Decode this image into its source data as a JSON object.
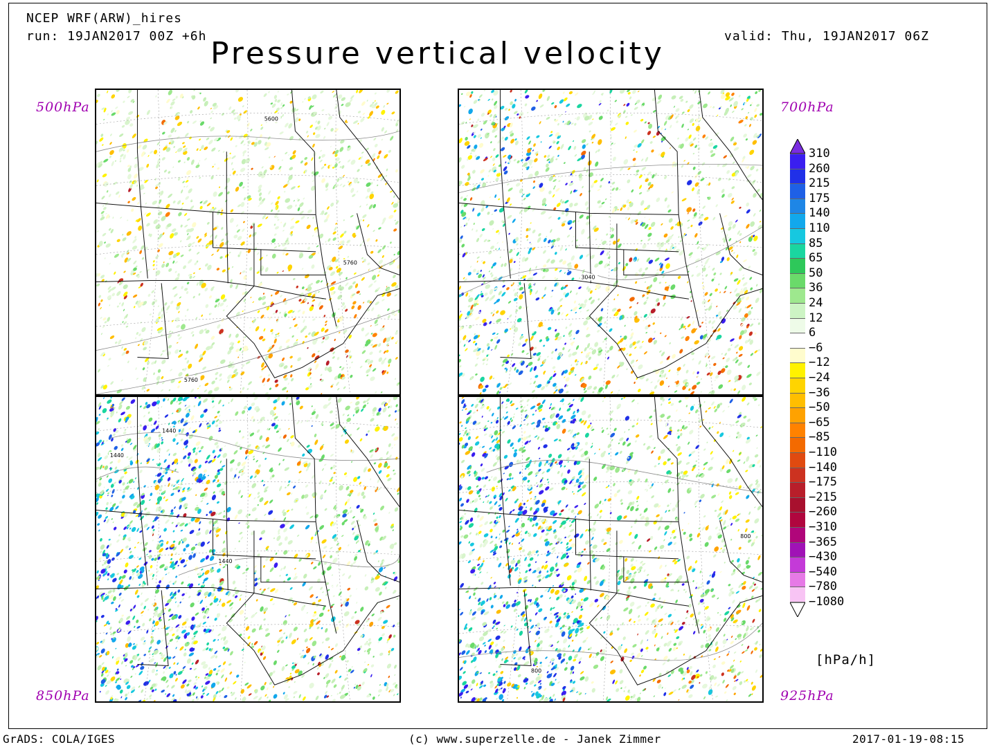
{
  "header": {
    "model": "NCEP WRF(ARW)_hires",
    "run": "run: 19JAN2017 00Z +6h",
    "valid": "valid: Thu, 19JAN2017 06Z",
    "title": "Pressure vertical velocity"
  },
  "panels": [
    {
      "level": "500hPa",
      "contours": [
        "5600",
        "5760",
        "5760"
      ],
      "scheme": "warm"
    },
    {
      "level": "700hPa",
      "contours": [
        "3040"
      ],
      "scheme": "mixed"
    },
    {
      "level": "850hPa",
      "contours": [
        "1440",
        "1440",
        "1440"
      ],
      "scheme": "cool"
    },
    {
      "level": "925hPa",
      "contours": [
        "800",
        "800"
      ],
      "scheme": "cool"
    }
  ],
  "colorbar": {
    "unit": "[hPa/h]",
    "labels": [
      "310",
      "260",
      "215",
      "175",
      "140",
      "110",
      "85",
      "65",
      "50",
      "36",
      "24",
      "12",
      "6",
      "−6",
      "−12",
      "−24",
      "−36",
      "−50",
      "−65",
      "−85",
      "−110",
      "−140",
      "−175",
      "−215",
      "−260",
      "−310",
      "−365",
      "−430",
      "−540",
      "−780",
      "−1080"
    ],
    "colors": [
      "#7a2de0",
      "#3a1ef0",
      "#2030e8",
      "#1e60e6",
      "#1e86e6",
      "#12a8ec",
      "#16c8e0",
      "#1ad6a0",
      "#2ec85a",
      "#6ada6a",
      "#9ee88e",
      "#cdf4c4",
      "#eefbe8",
      "#ffffff",
      "#fffccd",
      "#fff200",
      "#ffd400",
      "#ffbe00",
      "#ffa200",
      "#ff8200",
      "#f36a00",
      "#e04a10",
      "#cc3220",
      "#b81e2a",
      "#a8102e",
      "#b0063e",
      "#b0067a",
      "#a012b6",
      "#c43ad8",
      "#e67ae6",
      "#f8c4f4",
      "#ffffff"
    ]
  },
  "footer": {
    "left": "GrADS: COLA/IGES",
    "center": "(c) www.superzelle.de - Janek Zimmer",
    "right": "2017-01-19-08:15"
  }
}
